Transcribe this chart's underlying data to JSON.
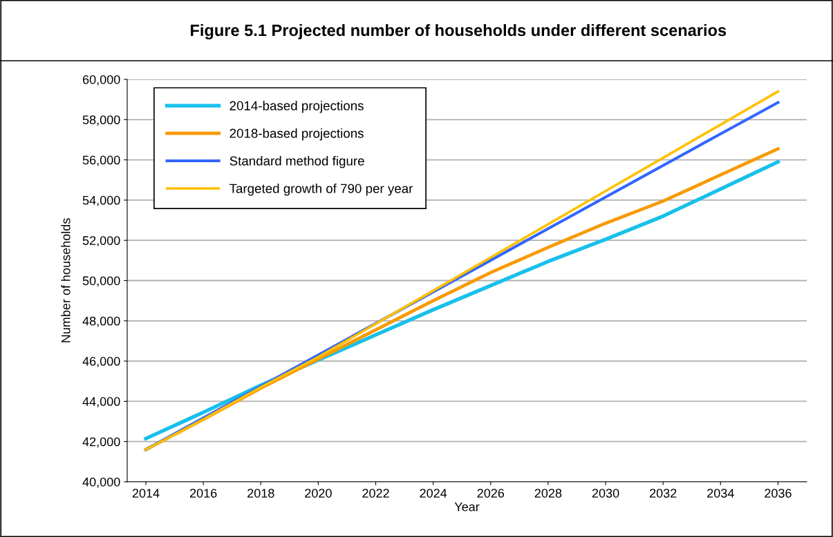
{
  "chart_data": {
    "type": "line",
    "title": "Figure 5.1 Projected number of households under different scenarios",
    "xlabel": "Year",
    "ylabel": "Number of households",
    "x": [
      2014,
      2016,
      2018,
      2020,
      2022,
      2024,
      2026,
      2028,
      2030,
      2032,
      2034,
      2036
    ],
    "series": [
      {
        "name": "2014-based projections",
        "color": "#17c0eb",
        "values": [
          42150,
          43450,
          44800,
          46050,
          47300,
          48550,
          49750,
          50950,
          52050,
          53200,
          54550,
          55900
        ]
      },
      {
        "name": "2018-based projections",
        "color": "#f79a06",
        "values": [
          41600,
          43100,
          44650,
          46100,
          47550,
          49000,
          50400,
          51650,
          52850,
          53950,
          55250,
          56550
        ]
      },
      {
        "name": "Standard method figure",
        "color": "#3366ff",
        "values": [
          41600,
          43170,
          44740,
          46300,
          47870,
          49440,
          51010,
          52580,
          54150,
          55720,
          57290,
          58850
        ]
      },
      {
        "name": "Targeted growth of 790 per year",
        "color": "#ffc000",
        "values": [
          41600,
          43100,
          44700,
          46200,
          47850,
          49500,
          51150,
          52800,
          54450,
          56100,
          57750,
          59400
        ]
      }
    ],
    "xlim": [
      2013.35,
      2037.0
    ],
    "xticks": [
      2014,
      2016,
      2018,
      2020,
      2022,
      2024,
      2026,
      2028,
      2030,
      2032,
      2034,
      2036
    ],
    "ylim": [
      40000,
      60000
    ],
    "yticks": [
      {
        "value": 40000,
        "label": "40,000"
      },
      {
        "value": 42000,
        "label": "42,000"
      },
      {
        "value": 44000,
        "label": "44,000"
      },
      {
        "value": 46000,
        "label": "46,000"
      },
      {
        "value": 48000,
        "label": "48,000"
      },
      {
        "value": 50000,
        "label": "50,000"
      },
      {
        "value": 52000,
        "label": "52,000"
      },
      {
        "value": 54000,
        "label": "54,000"
      },
      {
        "value": 56000,
        "label": "56,000"
      },
      {
        "value": 58000,
        "label": "58,000"
      },
      {
        "value": 60000,
        "label": "60,000"
      }
    ],
    "grid": "y",
    "legend": "top left",
    "marker": "none",
    "line_style": "solid"
  }
}
